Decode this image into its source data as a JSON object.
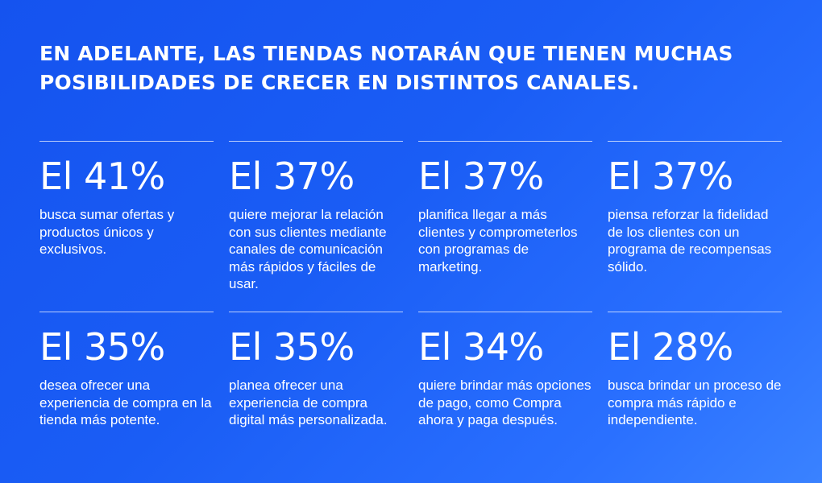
{
  "headline": {
    "line1": "EN ADELANTE, LAS TIENDAS NOTARÁN QUE TIENEN MUCHAS",
    "line2": "POSIBILIDADES DE CRECER EN DISTINTOS CANALES."
  },
  "stats": [
    {
      "value": "El 41%",
      "description": "busca sumar ofertas y productos únicos y exclusivos."
    },
    {
      "value": "El 37%",
      "description": "quiere mejorar la relación con sus clientes mediante canales de comunicación más rápidos y fáciles de usar."
    },
    {
      "value": "El 37%",
      "description": "planifica llegar a más clientes y comprometerlos con programas de marketing."
    },
    {
      "value": "El 37%",
      "description": "piensa reforzar la fidelidad de los clientes con un programa de recompensas sólido."
    },
    {
      "value": "El 35%",
      "description": "desea ofrecer una experiencia de compra en la tienda más potente."
    },
    {
      "value": "El 35%",
      "description": "planea ofrecer una experiencia de compra digital más personalizada."
    },
    {
      "value": "El 34%",
      "description": "quiere brindar más opciones de pago, como Compra ahora y paga después."
    },
    {
      "value": "El 28%",
      "description": "busca brindar un proceso de compra más rápido e independiente."
    }
  ],
  "colors": {
    "background": "#1a5cf2",
    "text": "#ffffff"
  }
}
